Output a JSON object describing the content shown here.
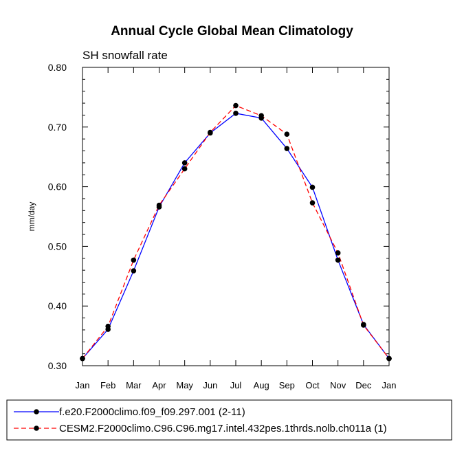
{
  "chart_data": {
    "type": "line",
    "title": "Annual Cycle Global Mean Climatology",
    "subtitle": "SH snowfall rate",
    "xlabel": "",
    "ylabel": "mm/day",
    "ylim": [
      0.3,
      0.8
    ],
    "yticks": [
      "0.30",
      "0.40",
      "0.50",
      "0.60",
      "0.70",
      "0.80"
    ],
    "ytick_values": [
      0.3,
      0.4,
      0.5,
      0.6,
      0.7,
      0.8
    ],
    "categories": [
      "Jan",
      "Feb",
      "Mar",
      "Apr",
      "May",
      "Jun",
      "Jul",
      "Aug",
      "Sep",
      "Oct",
      "Nov",
      "Dec",
      "Jan"
    ],
    "grid": false,
    "legend_position": "bottom",
    "series": [
      {
        "name": "f.e20.F2000climo.f09_f09.297.001 (2-11)",
        "color": "#0000ff",
        "dash": "solid",
        "values": [
          0.312,
          0.361,
          0.459,
          0.566,
          0.64,
          0.69,
          0.723,
          0.715,
          0.664,
          0.599,
          0.477,
          0.369,
          0.312
        ]
      },
      {
        "name": "CESM2.F2000climo.C96.C96.mg17.intel.432pes.1thrds.nolb.ch011a (1)",
        "color": "#ff0000",
        "dash": "dashed",
        "values": [
          0.312,
          0.366,
          0.477,
          0.569,
          0.63,
          0.691,
          0.736,
          0.719,
          0.688,
          0.573,
          0.489,
          0.368,
          0.312
        ]
      }
    ]
  }
}
